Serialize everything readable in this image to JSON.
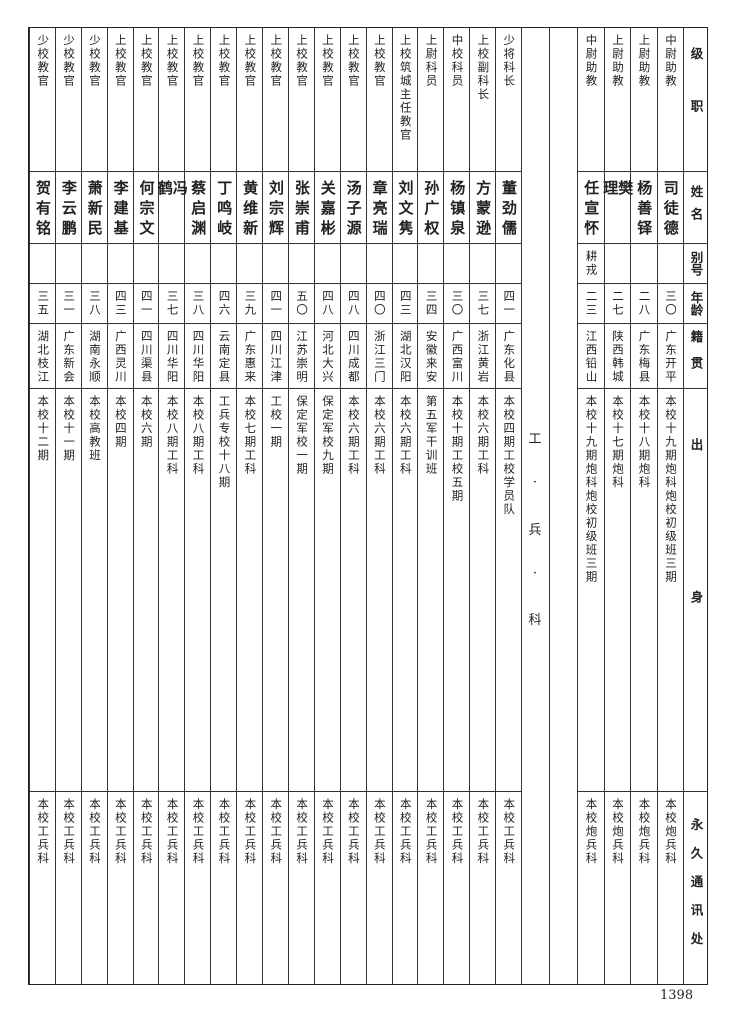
{
  "header": {
    "rank": "级职",
    "name": "姓名",
    "alias": "别号",
    "age": "年龄",
    "native": "籍贯",
    "origin": "出身",
    "address": "永久通讯处"
  },
  "artillery_rows": [
    {
      "rank": "中尉助教",
      "name": "司徒德",
      "alias": "",
      "age": "三〇",
      "native": "广东开平",
      "origin": "本校十九期炮科炮校初级班三期",
      "address": "本校炮兵科"
    },
    {
      "rank": "上尉助教",
      "name": "杨善铎",
      "alias": "",
      "age": "二八",
      "native": "广东梅县",
      "origin": "本校十八期炮科",
      "address": "本校炮兵科"
    },
    {
      "rank": "上尉助教",
      "name": "樊理",
      "alias": "",
      "age": "二七",
      "native": "陕西韩城",
      "origin": "本校十七期炮科",
      "address": "本校炮兵科"
    },
    {
      "rank": "中尉助教",
      "name": "任宣怀",
      "alias": "耕戎",
      "age": "二三",
      "native": "江西铅山",
      "origin": "本校十九期炮科炮校初级班三期",
      "address": "本校炮兵科"
    }
  ],
  "section_label": "工兵科",
  "engineer_rows": [
    {
      "rank": "少将科长",
      "name": "董劲儒",
      "alias": "",
      "age": "四一",
      "native": "广东化县",
      "origin": "本校四期工校学员队",
      "address": "本校工兵科"
    },
    {
      "rank": "上校副科长",
      "name": "方蒙逊",
      "alias": "",
      "age": "三七",
      "native": "浙江黄岩",
      "origin": "本校六期工科",
      "address": "本校工兵科"
    },
    {
      "rank": "中校科员",
      "name": "杨镇泉",
      "alias": "",
      "age": "三〇",
      "native": "广西富川",
      "origin": "本校十期工校五期",
      "address": "本校工兵科"
    },
    {
      "rank": "上尉科员",
      "name": "孙广权",
      "alias": "",
      "age": "三四",
      "native": "安徽来安",
      "origin": "第五军干训班",
      "address": "本校工兵科"
    },
    {
      "rank": "上校筑城主任教官",
      "name": "刘文隽",
      "alias": "",
      "age": "四三",
      "native": "湖北汉阳",
      "origin": "本校六期工科",
      "address": "本校工兵科"
    },
    {
      "rank": "上校教官",
      "name": "章亮瑞",
      "alias": "",
      "age": "四〇",
      "native": "浙江三门",
      "origin": "本校六期工科",
      "address": "本校工兵科"
    },
    {
      "rank": "上校教官",
      "name": "汤子源",
      "alias": "",
      "age": "四八",
      "native": "四川成都",
      "origin": "本校六期工科",
      "address": "本校工兵科"
    },
    {
      "rank": "上校教官",
      "name": "关嘉彬",
      "alias": "",
      "age": "四八",
      "native": "河北大兴",
      "origin": "保定军校九期",
      "address": "本校工兵科"
    },
    {
      "rank": "上校教官",
      "name": "张崇甫",
      "alias": "",
      "age": "五〇",
      "native": "江苏崇明",
      "origin": "保定军校一期",
      "address": "本校工兵科"
    },
    {
      "rank": "上校教官",
      "name": "刘宗辉",
      "alias": "",
      "age": "四一",
      "native": "四川江津",
      "origin": "工校一期",
      "address": "本校工兵科"
    },
    {
      "rank": "上校教官",
      "name": "黄维新",
      "alias": "",
      "age": "三九",
      "native": "广东惠来",
      "origin": "本校七期工科",
      "address": "本校工兵科"
    },
    {
      "rank": "上校教官",
      "name": "丁鸣岐",
      "alias": "",
      "age": "四六",
      "native": "云南定县",
      "origin": "工兵专校十八期",
      "address": "本校工兵科"
    },
    {
      "rank": "上校教官",
      "name": "蔡启渊",
      "alias": "",
      "age": "三八",
      "native": "四川华阳",
      "origin": "本校八期工科",
      "address": "本校工兵科"
    },
    {
      "rank": "上校教官",
      "name": "冯鹤",
      "alias": "",
      "age": "三七",
      "native": "四川华阳",
      "origin": "本校八期工科",
      "address": "本校工兵科"
    },
    {
      "rank": "上校教官",
      "name": "何宗文",
      "alias": "",
      "age": "四一",
      "native": "四川渠县",
      "origin": "本校六期",
      "address": "本校工兵科"
    },
    {
      "rank": "上校教官",
      "name": "李建基",
      "alias": "",
      "age": "四三",
      "native": "广西灵川",
      "origin": "本校四期",
      "address": "本校工兵科"
    },
    {
      "rank": "少校教官",
      "name": "萧新民",
      "alias": "",
      "age": "三八",
      "native": "湖南永顺",
      "origin": "本校高教班",
      "address": "本校工兵科"
    },
    {
      "rank": "少校教官",
      "name": "李云鹏",
      "alias": "",
      "age": "三一",
      "native": "广东新会",
      "origin": "本校十一期",
      "address": "本校工兵科"
    },
    {
      "rank": "少校教官",
      "name": "贺有铭",
      "alias": "",
      "age": "三五",
      "native": "湖北枝江",
      "origin": "本校十二期",
      "address": "本校工兵科"
    }
  ],
  "page_number": "1398"
}
